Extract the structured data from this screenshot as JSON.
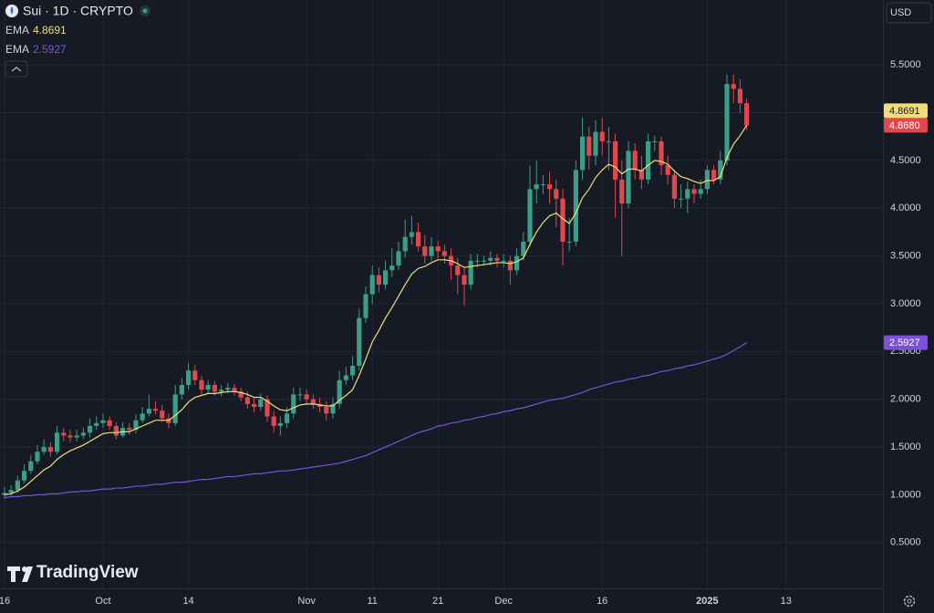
{
  "chart_data": {
    "type": "candlestick",
    "title": "Sui · 1D · CRYPTO",
    "currency": "USD",
    "watermark": "TradingView",
    "up_color": "#3c9d88",
    "down_color": "#e0484e",
    "grid": true,
    "xlim": [
      -0.69,
      133.75
    ],
    "xticks": [
      {
        "value": 0,
        "label": "16"
      },
      {
        "value": 15,
        "label": "Oct"
      },
      {
        "value": 28,
        "label": "14"
      },
      {
        "value": 46,
        "label": "Nov"
      },
      {
        "value": 56,
        "label": "11"
      },
      {
        "value": 66,
        "label": "21"
      },
      {
        "value": 76,
        "label": "Dec"
      },
      {
        "value": 91,
        "label": "16"
      },
      {
        "value": 107,
        "label": "2025"
      },
      {
        "value": 119,
        "label": "13"
      }
    ],
    "ylim": [
      0.02,
      6.18
    ],
    "yticks": [
      {
        "value": 0.5,
        "label": "0.5000"
      },
      {
        "value": 1,
        "label": "1.0000"
      },
      {
        "value": 1.5,
        "label": "1.5000"
      },
      {
        "value": 2,
        "label": "2.0000"
      },
      {
        "value": 2.5,
        "label": "2.5000"
      },
      {
        "value": 3,
        "label": "3.0000"
      },
      {
        "value": 3.5,
        "label": "3.5000"
      },
      {
        "value": 4,
        "label": "4.0000"
      },
      {
        "value": 4.5,
        "label": "4.5000"
      },
      {
        "value": 5,
        "label": "5.0000"
      },
      {
        "value": 5.5,
        "label": "5.5000"
      }
    ],
    "x": [
      0,
      1,
      2,
      3,
      4,
      5,
      6,
      7,
      8,
      9,
      10,
      11,
      12,
      13,
      14,
      15,
      16,
      17,
      18,
      19,
      20,
      21,
      22,
      23,
      24,
      25,
      26,
      27,
      28,
      29,
      30,
      31,
      32,
      33,
      34,
      35,
      36,
      37,
      38,
      39,
      40,
      41,
      42,
      43,
      44,
      45,
      46,
      47,
      48,
      49,
      50,
      51,
      52,
      53,
      54,
      55,
      56,
      57,
      58,
      59,
      60,
      61,
      62,
      63,
      64,
      65,
      66,
      67,
      68,
      69,
      70,
      71,
      72,
      73,
      74,
      75,
      76,
      77,
      78,
      79,
      80,
      81,
      82,
      83,
      84,
      85,
      86,
      87,
      88,
      89,
      90,
      91,
      92,
      93,
      94,
      95,
      96,
      97,
      98,
      99,
      100,
      101,
      102,
      103,
      104,
      105,
      106,
      107,
      108,
      109,
      110,
      111,
      112,
      113
    ],
    "open": [
      1.0,
      1.02,
      1.05,
      1.15,
      1.25,
      1.35,
      1.45,
      1.5,
      1.45,
      1.65,
      1.62,
      1.6,
      1.62,
      1.65,
      1.72,
      1.75,
      1.78,
      1.72,
      1.62,
      1.7,
      1.68,
      1.78,
      1.85,
      1.9,
      1.88,
      1.8,
      1.75,
      2.05,
      2.15,
      2.3,
      2.2,
      2.1,
      2.15,
      2.08,
      2.1,
      2.12,
      2.08,
      2.02,
      1.95,
      1.92,
      2.0,
      1.82,
      1.72,
      1.75,
      1.85,
      2.05,
      2.05,
      2.0,
      1.95,
      1.92,
      1.85,
      1.95,
      2.2,
      2.25,
      2.35,
      2.85,
      3.1,
      3.3,
      3.2,
      3.35,
      3.4,
      3.55,
      3.7,
      3.75,
      3.6,
      3.5,
      3.6,
      3.55,
      3.5,
      3.4,
      3.3,
      3.2,
      3.45,
      3.45,
      3.45,
      3.48,
      3.45,
      3.45,
      3.35,
      3.5,
      3.65,
      4.2,
      4.25,
      4.25,
      4.2,
      4.1,
      3.65,
      3.65,
      4.4,
      4.75,
      4.55,
      4.8,
      4.7,
      4.7,
      4.3,
      4.05,
      4.6,
      4.4,
      4.3,
      4.7,
      4.7,
      4.45,
      4.35,
      4.1,
      4.1,
      4.2,
      4.15,
      4.2,
      4.4,
      4.3,
      4.5,
      5.3,
      5.25,
      5.1
    ],
    "high": [
      1.08,
      1.1,
      1.2,
      1.32,
      1.42,
      1.52,
      1.58,
      1.55,
      1.72,
      1.7,
      1.68,
      1.68,
      1.7,
      1.8,
      1.82,
      1.85,
      1.82,
      1.76,
      1.76,
      1.75,
      1.84,
      1.92,
      2.05,
      1.98,
      1.94,
      1.85,
      2.15,
      2.22,
      2.38,
      2.36,
      2.25,
      2.2,
      2.19,
      2.15,
      2.17,
      2.16,
      2.12,
      2.08,
      2.02,
      2.06,
      2.04,
      1.88,
      1.82,
      1.92,
      2.12,
      2.12,
      2.1,
      2.05,
      2.02,
      1.98,
      2.02,
      2.3,
      2.34,
      2.45,
      2.95,
      3.18,
      3.4,
      3.38,
      3.45,
      3.58,
      3.65,
      3.88,
      3.92,
      3.85,
      3.72,
      3.7,
      3.66,
      3.62,
      3.58,
      3.48,
      3.38,
      3.52,
      3.52,
      3.5,
      3.55,
      3.52,
      3.52,
      3.5,
      3.58,
      3.75,
      4.45,
      4.5,
      4.35,
      4.38,
      4.3,
      4.2,
      3.9,
      4.5,
      4.95,
      4.85,
      4.92,
      4.95,
      4.85,
      4.78,
      4.5,
      4.7,
      4.68,
      4.55,
      4.78,
      4.76,
      4.75,
      4.55,
      4.4,
      4.25,
      4.28,
      4.25,
      4.3,
      4.45,
      4.45,
      4.6,
      5.4,
      5.4,
      5.35,
      5.15
    ],
    "low": [
      0.96,
      0.99,
      1.02,
      1.12,
      1.22,
      1.32,
      1.42,
      1.4,
      1.42,
      1.56,
      1.55,
      1.56,
      1.58,
      1.6,
      1.68,
      1.7,
      1.68,
      1.58,
      1.6,
      1.63,
      1.64,
      1.75,
      1.82,
      1.84,
      1.76,
      1.7,
      1.72,
      2.0,
      2.1,
      2.15,
      2.05,
      2.06,
      2.04,
      2.03,
      2.06,
      2.04,
      1.98,
      1.9,
      1.86,
      1.88,
      1.76,
      1.65,
      1.62,
      1.7,
      1.8,
      1.98,
      1.95,
      1.9,
      1.86,
      1.78,
      1.8,
      1.9,
      2.15,
      2.2,
      2.3,
      2.8,
      3.0,
      3.12,
      3.15,
      3.28,
      3.35,
      3.48,
      3.62,
      3.55,
      3.42,
      3.45,
      3.48,
      3.42,
      3.25,
      3.1,
      2.98,
      3.15,
      3.38,
      3.4,
      3.4,
      3.38,
      3.38,
      3.2,
      3.3,
      3.45,
      3.6,
      4.05,
      4.15,
      4.05,
      3.8,
      3.4,
      3.55,
      3.6,
      4.3,
      4.4,
      4.45,
      4.55,
      4.4,
      3.9,
      3.5,
      4.0,
      4.3,
      4.2,
      4.25,
      4.6,
      4.35,
      4.25,
      4.0,
      4.0,
      3.95,
      4.05,
      4.1,
      4.15,
      4.25,
      4.25,
      4.45,
      5.1,
      5.0,
      4.82
    ],
    "close": [
      1.02,
      1.05,
      1.15,
      1.25,
      1.35,
      1.45,
      1.5,
      1.45,
      1.65,
      1.62,
      1.6,
      1.62,
      1.65,
      1.72,
      1.75,
      1.78,
      1.72,
      1.62,
      1.7,
      1.68,
      1.78,
      1.85,
      1.9,
      1.88,
      1.8,
      1.75,
      2.05,
      2.15,
      2.3,
      2.2,
      2.1,
      2.15,
      2.08,
      2.1,
      2.12,
      2.08,
      2.02,
      1.95,
      1.92,
      2.0,
      1.82,
      1.72,
      1.75,
      1.85,
      2.05,
      2.05,
      2.0,
      1.95,
      1.92,
      1.85,
      1.95,
      2.2,
      2.25,
      2.35,
      2.85,
      3.1,
      3.3,
      3.2,
      3.35,
      3.4,
      3.55,
      3.7,
      3.75,
      3.6,
      3.5,
      3.6,
      3.55,
      3.5,
      3.4,
      3.3,
      3.2,
      3.45,
      3.45,
      3.45,
      3.48,
      3.45,
      3.45,
      3.35,
      3.5,
      3.65,
      4.2,
      4.25,
      4.25,
      4.2,
      4.1,
      3.65,
      3.65,
      4.4,
      4.75,
      4.55,
      4.8,
      4.7,
      4.7,
      4.3,
      4.05,
      4.6,
      4.4,
      4.3,
      4.7,
      4.7,
      4.45,
      4.35,
      4.1,
      4.1,
      4.2,
      4.15,
      4.2,
      4.4,
      4.3,
      4.5,
      5.3,
      5.25,
      5.1,
      4.868
    ],
    "close_label": "4.8680",
    "series": [
      {
        "name": "EMA",
        "color": "#f2dd7a",
        "last_label": "4.8691",
        "values": [
          1.0,
          1.01,
          1.04,
          1.08,
          1.14,
          1.2,
          1.26,
          1.3,
          1.37,
          1.42,
          1.46,
          1.49,
          1.52,
          1.56,
          1.6,
          1.64,
          1.65,
          1.65,
          1.66,
          1.66,
          1.69,
          1.72,
          1.75,
          1.78,
          1.78,
          1.78,
          1.83,
          1.89,
          1.97,
          2.02,
          2.04,
          2.06,
          2.06,
          2.07,
          2.08,
          2.08,
          2.07,
          2.05,
          2.02,
          2.02,
          1.98,
          1.93,
          1.89,
          1.88,
          1.91,
          1.94,
          1.95,
          1.95,
          1.94,
          1.93,
          1.93,
          1.99,
          2.04,
          2.1,
          2.25,
          2.42,
          2.6,
          2.72,
          2.85,
          2.96,
          3.08,
          3.2,
          3.31,
          3.37,
          3.39,
          3.43,
          3.46,
          3.46,
          3.45,
          3.42,
          3.38,
          3.39,
          3.4,
          3.41,
          3.42,
          3.43,
          3.43,
          3.42,
          3.44,
          3.48,
          3.62,
          3.75,
          3.85,
          3.92,
          3.95,
          3.89,
          3.84,
          3.95,
          4.11,
          4.2,
          4.32,
          4.4,
          4.46,
          4.43,
          4.36,
          4.41,
          4.41,
          4.39,
          4.45,
          4.5,
          4.49,
          4.46,
          4.39,
          4.33,
          4.31,
          4.28,
          4.26,
          4.29,
          4.29,
          4.33,
          4.53,
          4.67,
          4.76,
          4.8691
        ]
      },
      {
        "name": "EMA",
        "color": "#7b52d6",
        "last_label": "2.5927",
        "values": [
          0.97,
          0.98,
          0.98,
          0.99,
          0.99,
          1.0,
          1.0,
          1.01,
          1.01,
          1.02,
          1.03,
          1.03,
          1.04,
          1.04,
          1.05,
          1.06,
          1.06,
          1.07,
          1.07,
          1.08,
          1.09,
          1.09,
          1.1,
          1.11,
          1.11,
          1.12,
          1.13,
          1.13,
          1.14,
          1.15,
          1.16,
          1.16,
          1.17,
          1.18,
          1.19,
          1.19,
          1.2,
          1.21,
          1.22,
          1.22,
          1.23,
          1.24,
          1.25,
          1.25,
          1.26,
          1.27,
          1.28,
          1.29,
          1.3,
          1.31,
          1.32,
          1.33,
          1.35,
          1.37,
          1.39,
          1.41,
          1.44,
          1.47,
          1.5,
          1.53,
          1.56,
          1.59,
          1.62,
          1.65,
          1.67,
          1.69,
          1.72,
          1.73,
          1.75,
          1.76,
          1.78,
          1.79,
          1.81,
          1.82,
          1.84,
          1.85,
          1.87,
          1.88,
          1.9,
          1.91,
          1.93,
          1.95,
          1.97,
          1.99,
          2.0,
          2.01,
          2.03,
          2.05,
          2.07,
          2.1,
          2.12,
          2.14,
          2.16,
          2.18,
          2.19,
          2.21,
          2.22,
          2.24,
          2.25,
          2.27,
          2.29,
          2.3,
          2.32,
          2.33,
          2.35,
          2.36,
          2.38,
          2.4,
          2.42,
          2.44,
          2.47,
          2.51,
          2.55,
          2.5927
        ]
      }
    ]
  }
}
